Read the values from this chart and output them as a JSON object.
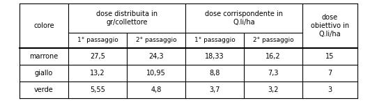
{
  "col_headers_row1": [
    "colore",
    "dose distribuita in\ngr/collettore",
    "dose corrispondente in\nQ.li/ha",
    "dose\nobiettivo in\nQ.li/ha"
  ],
  "col_headers_row2": [
    "",
    "1° passaggio",
    "2° passaggio",
    "1° passaggio",
    "2° passaggio",
    ""
  ],
  "rows": [
    [
      "marrone",
      "27,5",
      "24,3",
      "18,33",
      "16,2",
      "15"
    ],
    [
      "giallo",
      "13,2",
      "10,95",
      "8,8",
      "7,3",
      "7"
    ],
    [
      "verde",
      "5,55",
      "4,8",
      "3,7",
      "3,2",
      "3"
    ]
  ],
  "bg_color": "#ffffff",
  "border_color": "#000000",
  "text_color": "#000000",
  "font_size": 7.0,
  "fig_width": 5.41,
  "fig_height": 1.45,
  "dpi": 100
}
